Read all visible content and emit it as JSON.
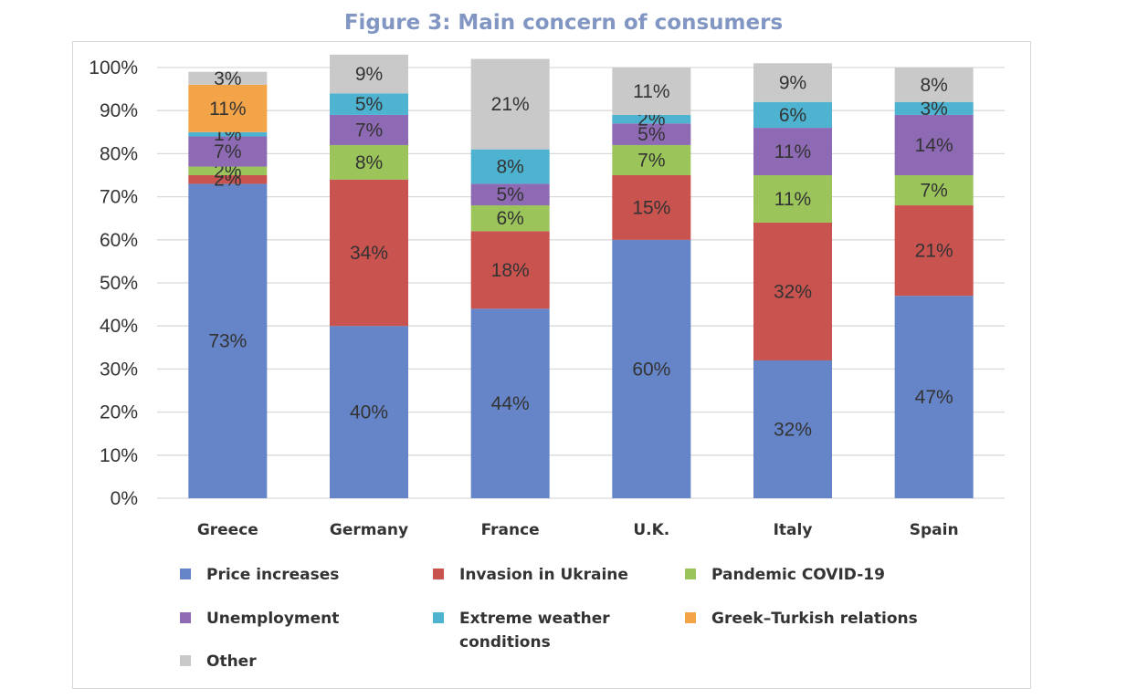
{
  "title": "Figure 3: Main concern of consumers",
  "chart_data": {
    "type": "bar",
    "stacked": true,
    "categories": [
      "Greece",
      "Germany",
      "France",
      "U.K.",
      "Italy",
      "Spain"
    ],
    "y_ticks": [
      "0%",
      "10%",
      "20%",
      "30%",
      "40%",
      "50%",
      "60%",
      "70%",
      "80%",
      "90%",
      "100%"
    ],
    "ylim": [
      0,
      100
    ],
    "grid": true,
    "legend_position": "bottom",
    "series": [
      {
        "name": "Price increases",
        "color": "#6585c8",
        "values": [
          73,
          40,
          44,
          60,
          32,
          47
        ],
        "labels": [
          "73%",
          "40%",
          "44%",
          "60%",
          "32%",
          "47%"
        ],
        "legend_lines": [
          "Price increases"
        ]
      },
      {
        "name": "Invasion in Ukraine",
        "color": "#c9534f",
        "values": [
          2,
          34,
          18,
          15,
          32,
          21
        ],
        "labels": [
          "2%",
          "34%",
          "18%",
          "15%",
          "32%",
          "21%"
        ],
        "legend_lines": [
          "Invasion in Ukraine"
        ]
      },
      {
        "name": "Pandemic COVID-19",
        "color": "#9bc55b",
        "values": [
          2,
          8,
          6,
          7,
          11,
          7
        ],
        "labels": [
          "2%",
          "8%",
          "6%",
          "7%",
          "11%",
          "7%"
        ],
        "legend_lines": [
          "Pandemic COVID-19"
        ]
      },
      {
        "name": "Unemployment",
        "color": "#8e6ab5",
        "values": [
          7,
          7,
          5,
          5,
          11,
          14
        ],
        "labels": [
          "7%",
          "7%",
          "5%",
          "5%",
          "11%",
          "14%"
        ],
        "legend_lines": [
          "Unemployment"
        ]
      },
      {
        "name": "Extreme weather conditions",
        "color": "#4eb3d1",
        "values": [
          1,
          5,
          8,
          2,
          6,
          3
        ],
        "labels": [
          "1%",
          "5%",
          "8%",
          "2%",
          "6%",
          "3%"
        ],
        "legend_lines": [
          "Extreme weather",
          "conditions"
        ]
      },
      {
        "name": "Greek–Turkish relations",
        "color": "#f3a448",
        "values": [
          11,
          0,
          0,
          0,
          0,
          0
        ],
        "labels": [
          "11%",
          "",
          "",
          "",
          "",
          ""
        ],
        "legend_lines": [
          "Greek–Turkish relations"
        ]
      },
      {
        "name": "Other",
        "color": "#c9c9c9",
        "values": [
          3,
          9,
          21,
          11,
          9,
          8
        ],
        "labels": [
          "3%",
          "9%",
          "21%",
          "11%",
          "9%",
          "8%"
        ],
        "legend_lines": [
          "Other"
        ]
      }
    ]
  }
}
